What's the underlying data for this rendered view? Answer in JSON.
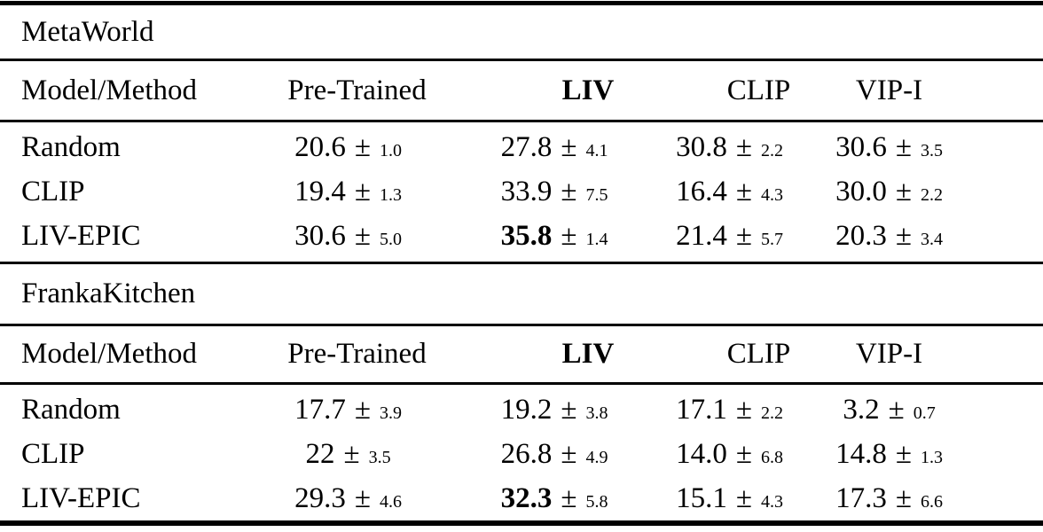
{
  "page": {
    "background_color": "#ffffff",
    "text_color": "#000000",
    "rule_color": "#000000"
  },
  "symbols": {
    "plus_minus": "±"
  },
  "tables": [
    {
      "section_title": "MetaWorld",
      "columns": {
        "method": "Model/Method",
        "col1": "Pre-Trained",
        "col2": "LIV",
        "col3": "CLIP",
        "col4": "VIP-I"
      },
      "rows": [
        {
          "method": "Random",
          "cells": [
            {
              "value": "20.6",
              "err": "1.0",
              "bold": false
            },
            {
              "value": "27.8",
              "err": "4.1",
              "bold": false
            },
            {
              "value": "30.8",
              "err": "2.2",
              "bold": false
            },
            {
              "value": "30.6",
              "err": "3.5",
              "bold": false
            }
          ]
        },
        {
          "method": "CLIP",
          "cells": [
            {
              "value": "19.4",
              "err": "1.3",
              "bold": false
            },
            {
              "value": "33.9",
              "err": "7.5",
              "bold": false
            },
            {
              "value": "16.4",
              "err": "4.3",
              "bold": false
            },
            {
              "value": "30.0",
              "err": "2.2",
              "bold": false
            }
          ]
        },
        {
          "method": "LIV-EPIC",
          "cells": [
            {
              "value": "30.6",
              "err": "5.0",
              "bold": false
            },
            {
              "value": "35.8",
              "err": "1.4",
              "bold": true
            },
            {
              "value": "21.4",
              "err": "5.7",
              "bold": false
            },
            {
              "value": "20.3",
              "err": "3.4",
              "bold": false
            }
          ]
        }
      ]
    },
    {
      "section_title": "FrankaKitchen",
      "columns": {
        "method": "Model/Method",
        "col1": "Pre-Trained",
        "col2": "LIV",
        "col3": "CLIP",
        "col4": "VIP-I"
      },
      "rows": [
        {
          "method": "Random",
          "cells": [
            {
              "value": "17.7",
              "err": "3.9",
              "bold": false
            },
            {
              "value": "19.2",
              "err": "3.8",
              "bold": false
            },
            {
              "value": "17.1",
              "err": "2.2",
              "bold": false
            },
            {
              "value": "3.2",
              "err": "0.7",
              "bold": false
            }
          ]
        },
        {
          "method": "CLIP",
          "cells": [
            {
              "value": "22",
              "err": "3.5",
              "bold": false
            },
            {
              "value": "26.8",
              "err": "4.9",
              "bold": false
            },
            {
              "value": "14.0",
              "err": "6.8",
              "bold": false
            },
            {
              "value": "14.8",
              "err": "1.3",
              "bold": false
            }
          ]
        },
        {
          "method": "LIV-EPIC",
          "cells": [
            {
              "value": "29.3",
              "err": "4.6",
              "bold": false
            },
            {
              "value": "32.3",
              "err": "5.8",
              "bold": true
            },
            {
              "value": "15.1",
              "err": "4.3",
              "bold": false
            },
            {
              "value": "17.3",
              "err": "6.6",
              "bold": false
            }
          ]
        }
      ]
    }
  ]
}
